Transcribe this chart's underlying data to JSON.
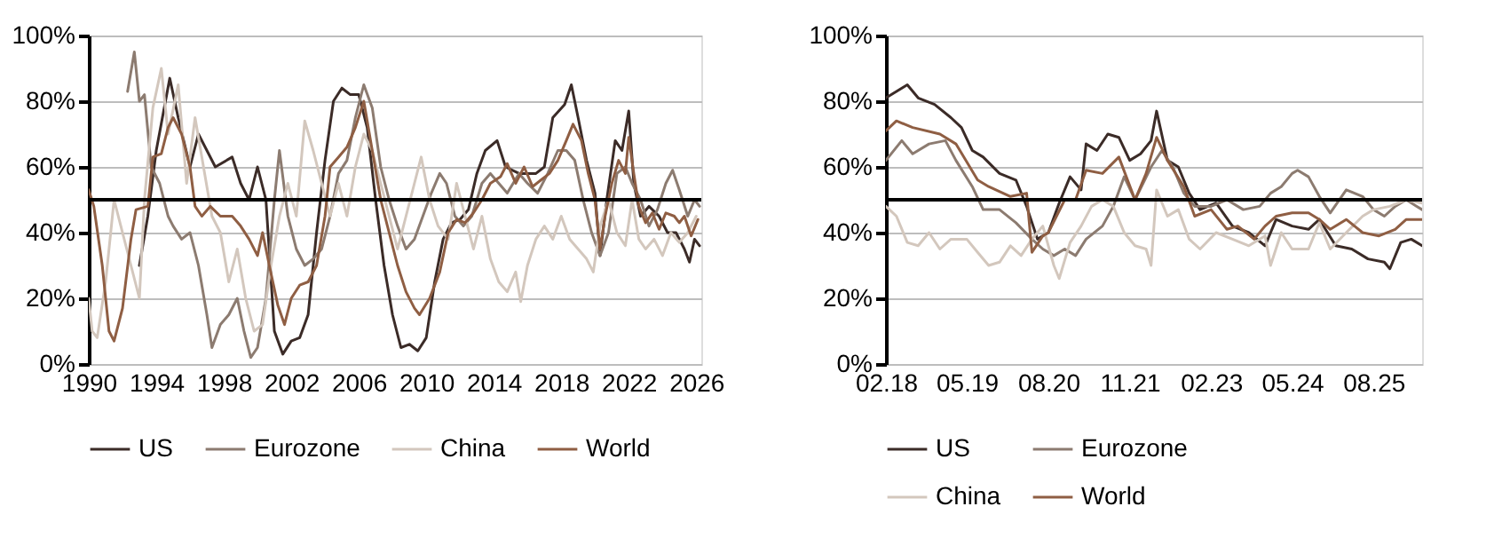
{
  "chart_data": [
    {
      "type": "line",
      "legend": "bottom",
      "grid": "y",
      "xlim": [
        1990,
        2026.3
      ],
      "xticks": [
        1990,
        1994,
        1998,
        2002,
        2006,
        2010,
        2014,
        2018,
        2022,
        2026
      ],
      "ylim": [
        0,
        100
      ],
      "yticks": [
        {
          "value": 0,
          "label": "0%"
        },
        {
          "value": 20,
          "label": "20%"
        },
        {
          "value": 40,
          "label": "40%"
        },
        {
          "value": 60,
          "label": "60%"
        },
        {
          "value": 80,
          "label": "80%"
        },
        {
          "value": 100,
          "label": "100%"
        }
      ],
      "ref_lines": [
        {
          "axis": "y",
          "value": 50,
          "color": "#000000"
        }
      ],
      "series": [
        {
          "name": "US",
          "color": "#3b2b27",
          "x": [
            1993.0,
            1993.5,
            1994.0,
            1994.8,
            1995.3,
            1996.0,
            1996.5,
            1997.5,
            1998.5,
            1999.0,
            1999.5,
            2000.0,
            2000.5,
            2001.0,
            2001.5,
            2002.0,
            2002.5,
            2003.0,
            2003.5,
            2004.0,
            2004.5,
            2005.0,
            2005.5,
            2006.0,
            2006.5,
            2007.0,
            2007.5,
            2008.0,
            2008.5,
            2009.0,
            2009.5,
            2010.0,
            2010.5,
            2011.0,
            2011.5,
            2012.0,
            2012.5,
            2013.0,
            2013.5,
            2014.2,
            2014.7,
            2015.5,
            2016.5,
            2017.0,
            2017.5,
            2018.2,
            2018.6,
            2019.0,
            2019.5,
            2020.0,
            2020.3,
            2020.7,
            2021.2,
            2021.6,
            2022.0,
            2022.3,
            2022.7,
            2023.2,
            2023.8,
            2024.3,
            2024.8,
            2025.3,
            2025.6,
            2025.9,
            2026.2
          ],
          "values": [
            30,
            45,
            65,
            87,
            75,
            60,
            70,
            60,
            63,
            55,
            50,
            60,
            50,
            10,
            3,
            7,
            8,
            15,
            40,
            62,
            80,
            84,
            82,
            82,
            72,
            50,
            30,
            15,
            5,
            6,
            4,
            8,
            25,
            38,
            43,
            44,
            47,
            58,
            65,
            68,
            60,
            58,
            58,
            60,
            75,
            79,
            85,
            75,
            62,
            52,
            33,
            50,
            68,
            65,
            77,
            55,
            45,
            48,
            45,
            40,
            40,
            35,
            31,
            38,
            36
          ]
        },
        {
          "name": "Eurozone",
          "color": "#8c7b70",
          "x": [
            1992.3,
            1992.7,
            1993.0,
            1993.3,
            1993.7,
            1994.2,
            1994.7,
            1995.0,
            1995.5,
            1996.0,
            1996.5,
            1997.0,
            1997.3,
            1997.8,
            1998.3,
            1998.8,
            1999.2,
            1999.6,
            2000.0,
            2000.5,
            2001.0,
            2001.3,
            2001.8,
            2002.3,
            2002.8,
            2003.3,
            2003.8,
            2004.3,
            2004.8,
            2005.3,
            2005.8,
            2006.3,
            2006.8,
            2007.3,
            2007.8,
            2008.3,
            2008.8,
            2009.3,
            2009.8,
            2010.3,
            2010.8,
            2011.2,
            2011.7,
            2012.2,
            2012.7,
            2013.3,
            2013.8,
            2014.3,
            2014.8,
            2015.5,
            2016.0,
            2016.6,
            2017.2,
            2017.8,
            2018.3,
            2018.8,
            2019.3,
            2019.8,
            2020.3,
            2020.8,
            2021.3,
            2021.8,
            2022.2,
            2022.7,
            2023.2,
            2023.7,
            2024.2,
            2024.6,
            2025.0,
            2025.5,
            2025.9,
            2026.2
          ],
          "values": [
            83,
            95,
            80,
            82,
            60,
            55,
            45,
            42,
            38,
            40,
            30,
            15,
            5,
            12,
            15,
            20,
            10,
            2,
            5,
            20,
            50,
            65,
            45,
            35,
            30,
            32,
            35,
            45,
            58,
            62,
            75,
            85,
            78,
            60,
            50,
            42,
            35,
            38,
            45,
            52,
            58,
            55,
            45,
            42,
            45,
            55,
            58,
            55,
            52,
            58,
            55,
            52,
            58,
            65,
            65,
            62,
            50,
            40,
            33,
            40,
            58,
            60,
            55,
            50,
            42,
            47,
            55,
            59,
            53,
            45,
            50,
            48
          ]
        },
        {
          "name": "China",
          "color": "#d3c7bd",
          "x": [
            1990.0,
            1990.2,
            1990.5,
            1991.0,
            1991.5,
            1992.0,
            1992.5,
            1993.0,
            1993.3,
            1993.8,
            1994.3,
            1994.7,
            1995.3,
            1995.8,
            1996.3,
            1996.8,
            1997.3,
            1997.8,
            1998.3,
            1998.8,
            1999.3,
            1999.8,
            2000.3,
            2000.8,
            2001.3,
            2001.8,
            2002.3,
            2002.8,
            2003.3,
            2003.8,
            2004.3,
            2004.8,
            2005.3,
            2005.8,
            2006.3,
            2006.8,
            2007.3,
            2007.8,
            2008.3,
            2008.8,
            2009.3,
            2009.7,
            2010.2,
            2010.7,
            2011.3,
            2011.8,
            2012.3,
            2012.8,
            2013.3,
            2013.8,
            2014.3,
            2014.8,
            2015.3,
            2015.6,
            2016.0,
            2016.5,
            2017.0,
            2017.5,
            2018.0,
            2018.5,
            2019.0,
            2019.5,
            2019.9,
            2020.3,
            2020.8,
            2021.3,
            2021.8,
            2022.2,
            2022.6,
            2023.0,
            2023.5,
            2024.0,
            2024.5,
            2025.0,
            2025.5,
            2026.0
          ],
          "values": [
            20,
            10,
            8,
            25,
            50,
            40,
            30,
            20,
            50,
            78,
            90,
            70,
            85,
            55,
            75,
            60,
            45,
            40,
            25,
            35,
            20,
            10,
            12,
            30,
            45,
            55,
            45,
            74,
            65,
            55,
            45,
            55,
            45,
            60,
            70,
            65,
            55,
            45,
            35,
            45,
            55,
            63,
            50,
            42,
            38,
            55,
            45,
            35,
            45,
            32,
            25,
            22,
            28,
            19,
            30,
            38,
            42,
            38,
            45,
            38,
            35,
            32,
            28,
            42,
            50,
            40,
            36,
            50,
            38,
            35,
            38,
            33,
            40,
            37,
            40,
            45
          ]
        },
        {
          "name": "World",
          "color": "#8f5e43",
          "x": [
            1990.0,
            1990.3,
            1990.8,
            1991.2,
            1991.5,
            1992.0,
            1992.5,
            1992.8,
            1993.5,
            1993.8,
            1994.3,
            1994.7,
            1995.0,
            1995.5,
            1996.0,
            1996.3,
            1996.7,
            1997.2,
            1997.8,
            1998.5,
            1999.0,
            1999.5,
            2000.0,
            2000.3,
            2000.7,
            2001.2,
            2001.6,
            2002.0,
            2002.5,
            2003.0,
            2003.5,
            2004.0,
            2004.3,
            2004.8,
            2005.3,
            2005.8,
            2006.3,
            2006.8,
            2007.3,
            2007.8,
            2008.3,
            2008.8,
            2009.3,
            2009.6,
            2010.2,
            2010.8,
            2011.3,
            2011.8,
            2012.3,
            2012.8,
            2013.3,
            2013.8,
            2014.4,
            2014.8,
            2015.3,
            2015.8,
            2016.3,
            2016.8,
            2017.3,
            2017.8,
            2018.3,
            2018.7,
            2019.2,
            2019.6,
            2020.0,
            2020.3,
            2020.6,
            2021.0,
            2021.4,
            2021.8,
            2022.0,
            2022.3,
            2022.6,
            2023.0,
            2023.4,
            2023.8,
            2024.2,
            2024.7,
            2025.0,
            2025.3,
            2025.7,
            2026.1
          ],
          "values": [
            53,
            48,
            30,
            10,
            7,
            17,
            38,
            47,
            48,
            63,
            64,
            72,
            75,
            70,
            60,
            48,
            45,
            48,
            45,
            45,
            42,
            38,
            33,
            40,
            30,
            18,
            12,
            20,
            24,
            25,
            30,
            45,
            60,
            63,
            66,
            72,
            80,
            65,
            50,
            40,
            30,
            22,
            17,
            15,
            20,
            28,
            40,
            44,
            43,
            46,
            50,
            55,
            57,
            61,
            55,
            60,
            54,
            56,
            58,
            62,
            68,
            73,
            68,
            58,
            50,
            35,
            45,
            55,
            62,
            58,
            69,
            58,
            48,
            43,
            46,
            41,
            46,
            45,
            43,
            45,
            39,
            44
          ]
        }
      ]
    },
    {
      "type": "line",
      "legend": "bottom",
      "grid": "y",
      "xlim": [
        "2018-02",
        "2026-05"
      ],
      "xticks": [
        {
          "value": "2018-02",
          "label": "02.18"
        },
        {
          "value": "2019-05",
          "label": "05.19"
        },
        {
          "value": "2020-08",
          "label": "08.20"
        },
        {
          "value": "2021-11",
          "label": "11.21"
        },
        {
          "value": "2023-02",
          "label": "02.23"
        },
        {
          "value": "2024-05",
          "label": "05.24"
        },
        {
          "value": "2025-08",
          "label": "08.25"
        }
      ],
      "ylim": [
        0,
        100
      ],
      "yticks": [
        {
          "value": 0,
          "label": "0%"
        },
        {
          "value": 20,
          "label": "20%"
        },
        {
          "value": 40,
          "label": "40%"
        },
        {
          "value": 60,
          "label": "60%"
        },
        {
          "value": 80,
          "label": "80%"
        },
        {
          "value": 100,
          "label": "100%"
        }
      ],
      "ref_lines": [
        {
          "axis": "y",
          "value": 50,
          "color": "#000000"
        }
      ],
      "series": [
        {
          "name": "US",
          "color": "#3b2b27",
          "x": [
            "2018-02",
            "2018-04",
            "2018-06",
            "2018-08",
            "2018-11",
            "2019-02",
            "2019-04",
            "2019-06",
            "2019-08",
            "2019-11",
            "2020-02",
            "2020-04",
            "2020-06",
            "2020-08",
            "2020-10",
            "2020-12",
            "2021-02",
            "2021-03",
            "2021-05",
            "2021-07",
            "2021-09",
            "2021-11",
            "2022-01",
            "2022-03",
            "2022-04",
            "2022-06",
            "2022-08",
            "2022-10",
            "2022-12",
            "2023-03",
            "2023-06",
            "2023-09",
            "2023-12",
            "2024-02",
            "2024-05",
            "2024-08",
            "2024-10",
            "2025-01",
            "2025-04",
            "2025-07",
            "2025-10",
            "2025-11",
            "2026-01",
            "2026-03",
            "2026-05"
          ],
          "values": [
            81,
            83,
            85,
            81,
            79,
            75,
            72,
            65,
            63,
            58,
            56,
            48,
            38,
            40,
            49,
            57,
            53,
            67,
            65,
            70,
            69,
            62,
            64,
            68,
            77,
            62,
            60,
            52,
            47,
            49,
            42,
            40,
            36,
            44,
            42,
            41,
            44,
            36,
            35,
            32,
            31,
            29,
            37,
            38,
            36
          ]
        },
        {
          "name": "Eurozone",
          "color": "#8c7b70",
          "x": [
            "2018-02",
            "2018-05",
            "2018-07",
            "2018-10",
            "2019-01",
            "2019-03",
            "2019-06",
            "2019-08",
            "2019-11",
            "2020-02",
            "2020-05",
            "2020-07",
            "2020-09",
            "2020-11",
            "2021-01",
            "2021-03",
            "2021-06",
            "2021-08",
            "2021-10",
            "2021-12",
            "2022-03",
            "2022-05",
            "2022-07",
            "2022-09",
            "2022-11",
            "2023-02",
            "2023-05",
            "2023-08",
            "2023-11",
            "2024-01",
            "2024-03",
            "2024-05",
            "2024-06",
            "2024-08",
            "2024-10",
            "2024-12",
            "2025-03",
            "2025-06",
            "2025-08",
            "2025-10",
            "2025-12",
            "2026-02",
            "2026-04",
            "2026-05"
          ],
          "values": [
            62,
            68,
            64,
            67,
            68,
            62,
            54,
            47,
            47,
            43,
            38,
            35,
            33,
            35,
            33,
            38,
            42,
            48,
            57,
            50,
            60,
            65,
            60,
            52,
            48,
            48,
            50,
            47,
            48,
            52,
            54,
            58,
            59,
            57,
            51,
            46,
            53,
            51,
            47,
            45,
            48,
            50,
            48,
            47
          ]
        },
        {
          "name": "China",
          "color": "#d3c7bd",
          "x": [
            "2018-02",
            "2018-04",
            "2018-06",
            "2018-08",
            "2018-10",
            "2018-12",
            "2019-02",
            "2019-05",
            "2019-07",
            "2019-09",
            "2019-11",
            "2020-01",
            "2020-03",
            "2020-05",
            "2020-07",
            "2020-09",
            "2020-10",
            "2020-12",
            "2021-02",
            "2021-04",
            "2021-06",
            "2021-08",
            "2021-10",
            "2021-12",
            "2022-02",
            "2022-03",
            "2022-04",
            "2022-06",
            "2022-08",
            "2022-10",
            "2022-12",
            "2023-03",
            "2023-06",
            "2023-09",
            "2023-12",
            "2024-01",
            "2024-03",
            "2024-05",
            "2024-08",
            "2024-10",
            "2024-12",
            "2025-03",
            "2025-06",
            "2025-08",
            "2025-11",
            "2026-02",
            "2026-05"
          ],
          "values": [
            48,
            45,
            37,
            36,
            40,
            35,
            38,
            38,
            34,
            30,
            31,
            36,
            33,
            38,
            42,
            30,
            26,
            37,
            42,
            48,
            50,
            48,
            40,
            36,
            35,
            30,
            53,
            45,
            47,
            38,
            35,
            40,
            38,
            36,
            39,
            30,
            40,
            35,
            35,
            43,
            35,
            40,
            45,
            47,
            48,
            50,
            49
          ]
        },
        {
          "name": "World",
          "color": "#8f5e43",
          "x": [
            "2018-02",
            "2018-04",
            "2018-07",
            "2018-12",
            "2019-03",
            "2019-07",
            "2019-09",
            "2020-01",
            "2020-04",
            "2020-05",
            "2020-07",
            "2020-08",
            "2020-11",
            "2021-01",
            "2021-03",
            "2021-06",
            "2021-09",
            "2021-12",
            "2022-02",
            "2022-04",
            "2022-06",
            "2022-09",
            "2022-11",
            "2023-02",
            "2023-05",
            "2023-07",
            "2023-10",
            "2023-12",
            "2024-02",
            "2024-05",
            "2024-08",
            "2024-10",
            "2024-12",
            "2025-03",
            "2025-06",
            "2025-09",
            "2025-12",
            "2026-02",
            "2026-05"
          ],
          "values": [
            71,
            74,
            72,
            70,
            67,
            56,
            54,
            51,
            52,
            34,
            39,
            40,
            50,
            50,
            59,
            58,
            63,
            50,
            58,
            69,
            62,
            54,
            45,
            47,
            41,
            42,
            38,
            42,
            45,
            46,
            46,
            44,
            41,
            44,
            40,
            39,
            41,
            44,
            44
          ]
        }
      ]
    }
  ]
}
